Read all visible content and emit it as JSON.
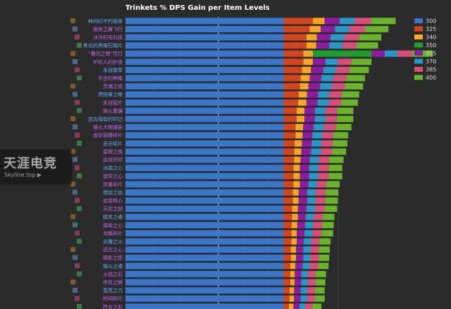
{
  "chart_data": {
    "type": "bar",
    "orientation": "horizontal",
    "stacked": true,
    "title": "Trinkets % DPS Gain per Item Levels",
    "legend_position": "top-right",
    "grid": true,
    "categories": [
      "林间的不朽徽章",
      "熔炼之翼飞行",
      "冰冷的宝石核",
      "焦化的黑曜石鳞片",
      "\"暴风之眼\"号灯",
      "炉石人的护身",
      "永冠徽章",
      "不息的脊椎",
      "灵魂之焰",
      "燃烧者之眼",
      "永冠裂片",
      "熔火重碾",
      "远古熔岩的印记",
      "熔火大地熔岩",
      "虚空裂缝碎片",
      "启示碎片",
      "星辉之核",
      "狂风符印",
      "冰霜之心",
      "虚空之心",
      "风暴碎片",
      "燃烧之焰",
      "岩浆核心",
      "天空之钥",
      "精灵之魂",
      "熔岩之心",
      "龙鳞碎片",
      "炎魔之火",
      "远古之心",
      "暗影之核",
      "熔火之魂",
      "火焰之石",
      "传世之鳞",
      "蛮荒之力",
      "时间碎片",
      "符文之石",
      "虚空之眼"
    ],
    "series": [
      {
        "name": "300",
        "color": "#3a76c9",
        "values": [
          24.3,
          24.3,
          24.3,
          24.3,
          24.3,
          24.3,
          24.3,
          24.3,
          24.3,
          24.3,
          24.3,
          24.3,
          24.3,
          24.3,
          24.3,
          24.3,
          24.3,
          24.3,
          24.3,
          24.3,
          24.3,
          24.3,
          24.3,
          24.3,
          24.3,
          24.3,
          24.3,
          24.3,
          24.3,
          24.3,
          24.3,
          24.3,
          24.3,
          24.3,
          24.3,
          24.3,
          24.3
        ]
      },
      {
        "name": "325",
        "color": "#d4451e",
        "values": [
          4.5,
          4.0,
          3.5,
          3.5,
          3.0,
          3.0,
          2.8,
          2.6,
          2.5,
          2.3,
          2.2,
          2.0,
          2.0,
          1.8,
          1.8,
          1.7,
          1.6,
          1.6,
          1.5,
          1.5,
          1.5,
          1.4,
          1.4,
          1.3,
          1.3,
          1.2,
          1.2,
          1.2,
          1.1,
          1.1,
          1.0,
          1.0,
          1.0,
          0.9,
          0.9,
          0.8,
          0.8
        ]
      },
      {
        "name": "340",
        "color": "#f5a623",
        "values": [
          1.8,
          1.7,
          1.6,
          1.5,
          1.5,
          1.5,
          1.4,
          1.4,
          1.3,
          1.3,
          1.3,
          1.2,
          1.2,
          1.2,
          1.1,
          1.1,
          1.1,
          1.0,
          1.0,
          1.0,
          1.0,
          0.9,
          0.9,
          0.9,
          0.9,
          0.9,
          0.8,
          0.8,
          0.8,
          0.8,
          0.8,
          0.7,
          0.7,
          0.7,
          0.7,
          0.7,
          0.6
        ]
      },
      {
        "name": "350",
        "color": "#1e9e2e",
        "values": [
          0,
          0,
          0,
          0,
          9.0,
          0,
          0,
          0,
          0,
          0,
          0,
          0,
          0,
          0,
          0,
          0,
          0,
          0,
          0,
          0,
          0,
          0,
          0,
          0,
          0,
          0,
          0,
          0,
          0,
          0,
          0,
          0,
          0,
          0,
          0,
          0,
          0
        ]
      },
      {
        "name": "355",
        "color": "#8e1aa0",
        "values": [
          2.3,
          2.2,
          2.1,
          2.0,
          2.0,
          1.9,
          1.9,
          1.8,
          1.8,
          1.7,
          1.7,
          1.6,
          1.6,
          1.6,
          1.5,
          1.5,
          1.5,
          1.4,
          1.4,
          1.4,
          1.3,
          1.3,
          1.3,
          1.3,
          1.2,
          1.2,
          1.2,
          1.1,
          1.1,
          1.1,
          1.1,
          1.0,
          1.0,
          1.0,
          1.0,
          0.9,
          0.9
        ]
      },
      {
        "name": "370",
        "color": "#2a97c9",
        "values": [
          2.3,
          2.2,
          2.1,
          2.0,
          2.0,
          1.9,
          1.9,
          1.8,
          1.8,
          1.7,
          1.7,
          1.6,
          1.6,
          1.6,
          1.5,
          1.5,
          1.5,
          1.4,
          1.4,
          1.4,
          1.3,
          1.3,
          1.3,
          1.3,
          1.2,
          1.2,
          1.2,
          1.1,
          1.1,
          1.1,
          1.1,
          1.0,
          1.0,
          1.0,
          1.0,
          0.9,
          0.9
        ]
      },
      {
        "name": "385",
        "color": "#d94d79",
        "values": [
          2.5,
          2.4,
          2.3,
          2.2,
          2.2,
          2.1,
          2.1,
          2.0,
          2.0,
          1.9,
          1.9,
          1.8,
          1.8,
          1.8,
          1.7,
          1.7,
          1.7,
          1.6,
          1.6,
          1.6,
          1.5,
          1.5,
          1.5,
          1.5,
          1.4,
          1.4,
          1.4,
          1.3,
          1.3,
          1.3,
          1.3,
          1.2,
          1.2,
          1.2,
          1.2,
          1.1,
          1.1
        ]
      },
      {
        "name": "400",
        "color": "#6ab42c",
        "values": [
          3.8,
          3.6,
          3.4,
          3.3,
          3.2,
          3.1,
          3.0,
          2.9,
          2.8,
          2.7,
          2.6,
          2.5,
          2.5,
          2.4,
          2.3,
          2.3,
          2.2,
          2.2,
          2.1,
          2.1,
          2.0,
          2.0,
          1.9,
          1.9,
          1.8,
          1.8,
          1.8,
          1.7,
          1.7,
          1.6,
          1.6,
          1.6,
          1.5,
          1.5,
          1.5,
          1.4,
          1.4
        ]
      }
    ]
  },
  "watermark": {
    "main": "天涯电竞",
    "sub": "Skyline.top ▶"
  },
  "ui_colors": {
    "background": "#2b2b2b",
    "gridline": "#555555",
    "label_text": "#cc66ff",
    "label_text_alt": "#66aaff"
  }
}
